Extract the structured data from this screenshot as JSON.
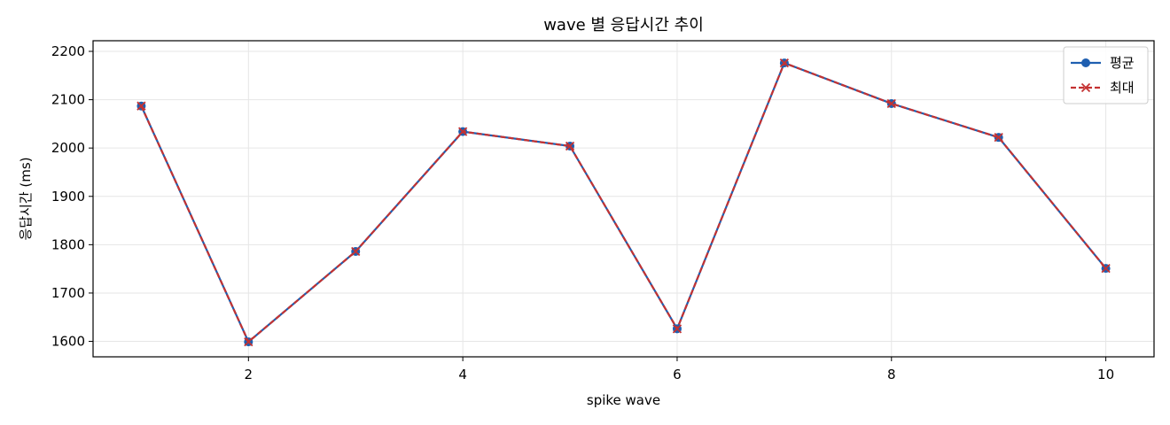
{
  "chart_data": {
    "type": "line",
    "title": "wave 별 응답시간 추이",
    "xlabel": "spike wave",
    "ylabel": "응답시간 (ms)",
    "xlim": [
      0.55,
      10.45
    ],
    "ylim": [
      1568,
      2222
    ],
    "xticks": [
      2,
      4,
      6,
      8,
      10
    ],
    "yticks": [
      1600,
      1700,
      1800,
      1900,
      2000,
      2100,
      2200
    ],
    "grid": true,
    "legend_position": "top-right",
    "x": [
      1,
      2,
      3,
      4,
      5,
      6,
      7,
      8,
      9,
      10
    ],
    "series": [
      {
        "name": "평균",
        "color": "#1f5fb0",
        "marker": "circle",
        "style": "solid",
        "values": [
          2087,
          1599,
          1786,
          2034,
          2004,
          1626,
          2176,
          2092,
          2022,
          1751
        ]
      },
      {
        "name": "최대",
        "color": "#c43232",
        "marker": "x",
        "style": "dashed",
        "values": [
          2087,
          1599,
          1786,
          2034,
          2004,
          1626,
          2176,
          2092,
          2022,
          1751
        ]
      }
    ]
  }
}
